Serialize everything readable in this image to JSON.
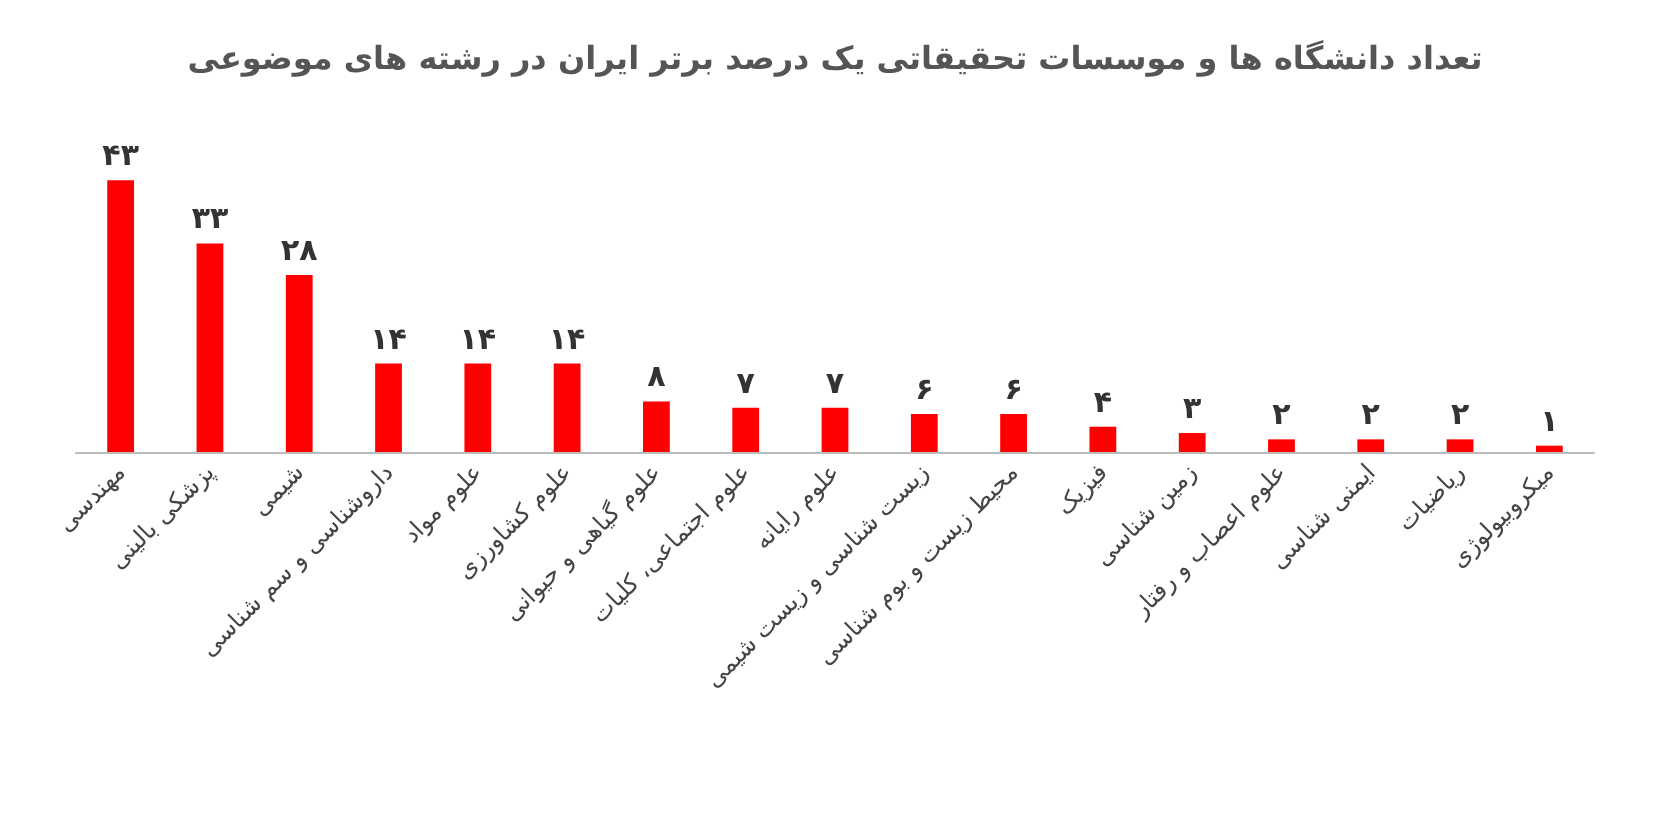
{
  "chart_data": {
    "type": "bar",
    "title": "تعداد دانشگاه ها و موسسات تحقیقاتی یک درصد برتر ایران در رشته های موضوعی",
    "categories": [
      "مهندسی",
      "پزشکی بالینی",
      "شیمی",
      "داروشناسی و سم شناسی",
      "علوم مواد",
      "علوم کشاورزی",
      "علوم گیاهی و حیوانی",
      "علوم اجتماعی، کلیات",
      "علوم رایانه",
      "زیست شناسی و زیست شیمی",
      "محیط زیست و بوم شناسی",
      "فیزیک",
      "زمین شناسی",
      "علوم اعصاب و رفتار",
      "ایمنی شناسی",
      "ریاضیات",
      "میکروبیولوژی"
    ],
    "values": [
      43,
      33,
      28,
      14,
      14,
      14,
      8,
      7,
      7,
      6,
      6,
      4,
      3,
      2,
      2,
      2,
      1
    ],
    "value_labels": [
      "۴۳",
      "۳۳",
      "۲۸",
      "۱۴",
      "۱۴",
      "۱۴",
      "۸",
      "۷",
      "۷",
      "۶",
      "۶",
      "۴",
      "۳",
      "۲",
      "۲",
      "۲",
      "۱"
    ],
    "color": "#ff0000"
  }
}
